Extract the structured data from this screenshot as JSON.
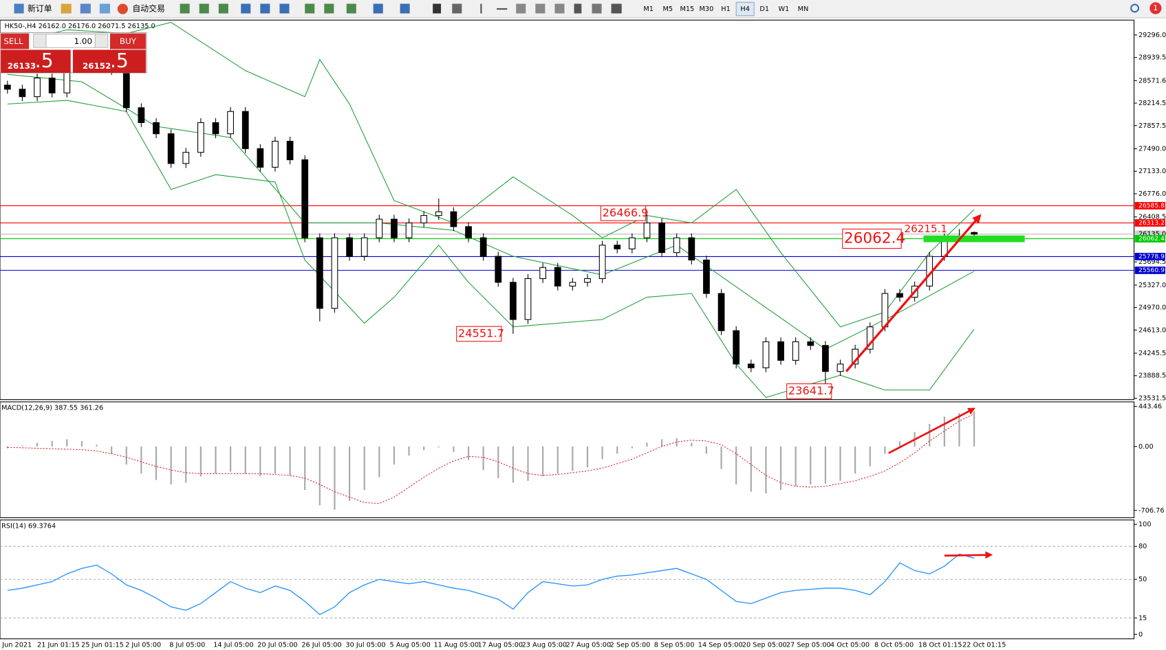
{
  "toolbar": {
    "new_order": "新订单",
    "auto_trading": "自动交易",
    "timeframes": [
      "M1",
      "M5",
      "M15",
      "M30",
      "H1",
      "H4",
      "D1",
      "W1",
      "MN"
    ],
    "active_timeframe": "H4",
    "badge": "1"
  },
  "trade_panel": {
    "sell": "SELL",
    "buy": "BUY",
    "lots": "1.00",
    "bid_main": "26133",
    "bid_big": ".5",
    "ask_main": "26152",
    "ask_big": ".5"
  },
  "chart_data": [
    {
      "type": "candlestick",
      "title": "HK50-,H4  26162.0 26176.0 26071.5 26135.0",
      "open": [
        28500,
        28435,
        28317,
        28612,
        28376,
        28789,
        28848,
        28907,
        28730,
        28141,
        27905,
        27728,
        27256,
        27433,
        27905,
        27728,
        28082,
        27492,
        27197,
        27610,
        27315,
        26077,
        24957,
        26077,
        25783,
        26077,
        26372,
        26077,
        26313,
        26431,
        26490,
        26254,
        26077,
        25783,
        25370,
        24780,
        25429,
        25606,
        25311,
        25370,
        25429,
        25960,
        25901,
        26077,
        26313,
        25842,
        26077,
        25724,
        25193,
        24603,
        24073,
        24014,
        24427,
        24132,
        24427,
        24368,
        23955,
        24073,
        24309,
        24663,
        25193,
        25134,
        25311,
        25783,
        26077,
        26162
      ],
      "high": [
        28570,
        28505,
        28682,
        28682,
        28859,
        28918,
        28977,
        28977,
        28800,
        28211,
        27975,
        27798,
        27503,
        27975,
        27975,
        28152,
        28152,
        27562,
        27680,
        27680,
        27385,
        26147,
        26147,
        26147,
        26147,
        26442,
        26442,
        26383,
        26501,
        26700,
        26560,
        26324,
        26147,
        25853,
        25440,
        25499,
        25676,
        25676,
        25440,
        25499,
        26030,
        26030,
        26147,
        26466.9,
        26383,
        26147,
        26147,
        25794,
        25263,
        24673,
        24143,
        24497,
        24497,
        24497,
        24497,
        24438,
        24143,
        24379,
        24733,
        25263,
        25263,
        25381,
        25853,
        26147,
        26215.1,
        26176
      ],
      "low": [
        28365,
        28247,
        28247,
        28306,
        28306,
        28719,
        28778,
        28660,
        28071,
        27835,
        27658,
        27186,
        27186,
        27363,
        27658,
        27658,
        27422,
        27127,
        27127,
        27245,
        26007,
        24750,
        24887,
        25713,
        25713,
        26007,
        26007,
        26007,
        26243,
        26361,
        26184,
        26007,
        25713,
        25300,
        24551.7,
        24710,
        25359,
        25241,
        25241,
        25300,
        25359,
        25831,
        25831,
        26007,
        25772,
        25772,
        25654,
        25123,
        24533,
        24003,
        23944,
        23944,
        24062,
        24062,
        24298,
        23641.7,
        23885,
        24003,
        24239,
        24593,
        25064,
        25064,
        25241,
        25713,
        26007,
        26071.5
      ],
      "close": [
        28435,
        28317,
        28612,
        28376,
        28789,
        28848,
        28907,
        28730,
        28141,
        27905,
        27728,
        27256,
        27433,
        27905,
        27728,
        28082,
        27492,
        27197,
        27610,
        27315,
        26077,
        24957,
        26077,
        25783,
        26077,
        26372,
        26077,
        26313,
        26431,
        26490,
        26254,
        26077,
        25783,
        25370,
        24780,
        25429,
        25606,
        25311,
        25370,
        25429,
        25960,
        25901,
        26077,
        26313,
        25842,
        26077,
        25724,
        25193,
        24603,
        24073,
        24014,
        24427,
        24132,
        24427,
        24368,
        23955,
        24073,
        24309,
        24663,
        25193,
        25134,
        25311,
        25783,
        26077,
        26101,
        26135
      ],
      "lines": [
        {
          "color": "#1f9e3a",
          "x": [
            0,
            4,
            8,
            11,
            16,
            20,
            21,
            23,
            26,
            30,
            34,
            38,
            40,
            43,
            46,
            49,
            52,
            56,
            59,
            62,
            65
          ],
          "values": [
            29143,
            29379,
            29320,
            29496,
            28730,
            28317,
            28907,
            28200,
            26667,
            26313,
            27044,
            26431,
            26077,
            26431,
            26313,
            26844,
            25842,
            24663,
            24898,
            25842,
            26525
          ]
        },
        {
          "color": "#1f9e3a",
          "x": [
            0,
            5,
            10,
            15,
            20,
            25,
            30,
            34,
            40,
            45,
            50,
            55,
            60,
            65
          ],
          "values": [
            28671,
            28553,
            27846,
            27669,
            26313,
            26313,
            26195,
            25783,
            25488,
            25960,
            25134,
            24309,
            24898,
            25547
          ]
        },
        {
          "color": "#1f9e3a",
          "x": [
            0,
            4,
            8,
            11,
            14,
            18,
            20,
            24,
            26,
            29,
            31,
            34,
            40,
            43,
            46,
            49,
            51,
            56,
            59,
            62,
            65
          ],
          "values": [
            28200,
            28258,
            28082,
            26844,
            27079,
            26962,
            25724,
            24722,
            25134,
            25960,
            25370,
            24663,
            24780,
            25134,
            25193,
            24073,
            23543,
            23896,
            23661,
            23661,
            24627
          ]
        }
      ],
      "levels": [
        {
          "value": 26585.8,
          "color": "#ff0000"
        },
        {
          "value": 26313.2,
          "color": "#ff0000"
        },
        {
          "value": 26062.4,
          "color": "#00c800"
        },
        {
          "value": 25778.9,
          "color": "#0000d0"
        },
        {
          "value": 25560.9,
          "color": "#0000d0"
        }
      ],
      "price_marker": {
        "value": 26135,
        "label": "26135.0"
      },
      "annotations": [
        {
          "value": 26466.9,
          "label": "26466.9"
        },
        {
          "value": 24551.7,
          "label": "24551.7"
        },
        {
          "value": 23641.7,
          "label": "23641.7"
        },
        {
          "value": 26215.1,
          "label": "26215.1"
        },
        {
          "value": 26062.4,
          "label": "26062.4"
        }
      ],
      "ylim": [
        23508,
        29532
      ],
      "yticks": [
        {
          "value": 29296,
          "label": "29296.0"
        },
        28939.5,
        28571.6,
        28214.5,
        27857.5,
        {
          "value": 27490,
          "label": "27490.0"
        },
        {
          "value": 27133,
          "label": "27133.0"
        },
        {
          "value": 26776,
          "label": "26776.0"
        },
        26408.5,
        25694.5,
        {
          "value": 25327,
          "label": "25327.0"
        },
        {
          "value": 24970,
          "label": "24970.0"
        },
        {
          "value": 24613,
          "label": "24613.0"
        },
        24245.5,
        23888.5,
        23531.5
      ],
      "x_labels": [
        "Jun 2021",
        "21 Jun 01:15",
        "25 Jun 01:15",
        "2 Jul 05:00",
        "8 Jul 05:00",
        "14 Jul 05:00",
        "20 Jul 05:00",
        "26 Jul 05:00",
        "30 Jul 05:00",
        "5 Aug 05:00",
        "11 Aug 05:00",
        "17 Aug 05:00",
        "23 Aug 05:00",
        "27 Aug 05:00",
        "2 Sep 05:00",
        "8 Sep 05:00",
        "14 Sep 05:00",
        "20 Sep 05:00",
        "27 Sep 05:00",
        "4 Oct 05:00",
        "8 Oct 05:00",
        "18 Oct 01:15",
        "22 Oct 01:15"
      ]
    },
    {
      "type": "macd",
      "title": "MACD(12,26,9) 387.55 361.26",
      "histogram": {
        "color": "#a8a8a8",
        "values": [
          -20,
          10,
          40,
          60,
          80,
          60,
          20,
          -80,
          -200,
          -300,
          -370,
          -420,
          -400,
          -330,
          -300,
          -280,
          -300,
          -330,
          -300,
          -320,
          -480,
          -650,
          -700,
          -600,
          -480,
          -340,
          -200,
          -100,
          -40,
          -10,
          -60,
          -150,
          -260,
          -350,
          -400,
          -380,
          -330,
          -300,
          -270,
          -230,
          -140,
          -80,
          -20,
          40,
          80,
          90,
          40,
          -80,
          -250,
          -420,
          -500,
          -520,
          -480,
          -440,
          -420,
          -410,
          -380,
          -300,
          -220,
          -80,
          60,
          160,
          250,
          330,
          370,
          387.55
        ]
      },
      "signal": {
        "color": "#e02020",
        "values": [
          -10,
          -15,
          -20,
          -25,
          -30,
          -35,
          -50,
          -80,
          -120,
          -170,
          -220,
          -260,
          -290,
          -300,
          -300,
          -300,
          -300,
          -300,
          -310,
          -320,
          -350,
          -420,
          -500,
          -560,
          -620,
          -630,
          -560,
          -450,
          -340,
          -240,
          -160,
          -110,
          -120,
          -170,
          -240,
          -300,
          -320,
          -310,
          -290,
          -270,
          -240,
          -190,
          -140,
          -70,
          0,
          50,
          70,
          60,
          20,
          -80,
          -200,
          -320,
          -400,
          -440,
          -450,
          -440,
          -410,
          -380,
          -330,
          -270,
          -180,
          -70,
          60,
          170,
          280,
          361.26
        ]
      },
      "ylim": [
        -788,
        493
      ],
      "yticks": [
        443.46,
        {
          "value": 0,
          "label": "0.00"
        },
        -706.76
      ]
    },
    {
      "type": "line",
      "title": "RSI(14) 69.3764",
      "color": "#1e90ff",
      "values": [
        40,
        42,
        45,
        48,
        55,
        60,
        63,
        55,
        45,
        40,
        33,
        25,
        22,
        28,
        38,
        48,
        42,
        38,
        44,
        40,
        30,
        18,
        25,
        38,
        45,
        50,
        48,
        46,
        48,
        45,
        42,
        40,
        36,
        32,
        23,
        38,
        48,
        46,
        44,
        45,
        50,
        53,
        54,
        56,
        58,
        60,
        55,
        50,
        40,
        30,
        28,
        33,
        38,
        40,
        41,
        42,
        42,
        40,
        36,
        48,
        65,
        58,
        55,
        62,
        73,
        69.3764
      ],
      "levels": [
        80,
        50,
        15
      ],
      "ylim": [
        -4,
        104
      ],
      "yticks": [
        100,
        80,
        50,
        15,
        0
      ]
    }
  ]
}
